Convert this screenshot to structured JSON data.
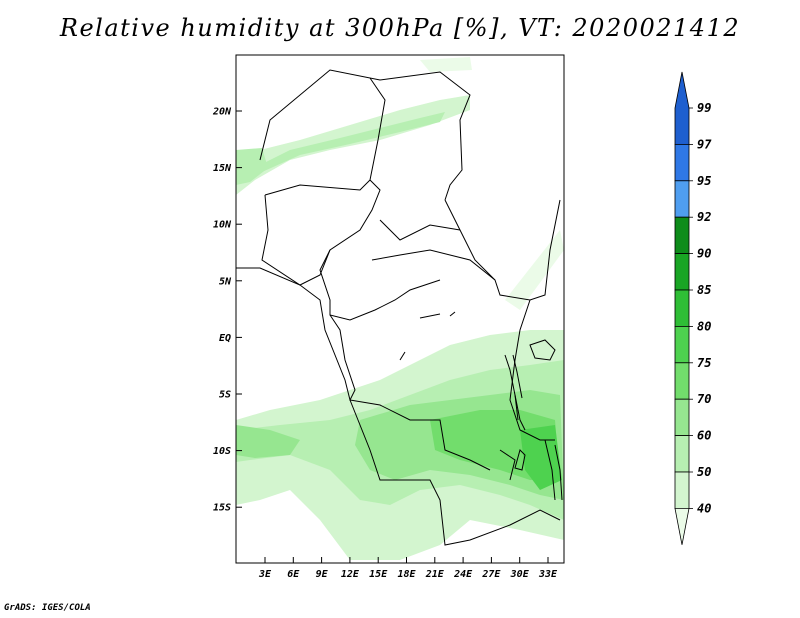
{
  "title": "Relative humidity at 300hPa [%], VT: 2020021412",
  "credit": "GrADS: IGES/COLA",
  "map": {
    "lat_ticks": [
      "20N",
      "15N",
      "10N",
      "5N",
      "EQ",
      "5S",
      "10S",
      "15S"
    ],
    "lon_ticks": [
      "3E",
      "6E",
      "9E",
      "12E",
      "15E",
      "18E",
      "21E",
      "24E",
      "27E",
      "30E",
      "33E"
    ]
  },
  "colorbar": {
    "levels": [
      "99",
      "97",
      "95",
      "92",
      "90",
      "85",
      "80",
      "75",
      "70",
      "60",
      "50",
      "40"
    ],
    "colors": [
      "#1e5fcf",
      "#2f78e6",
      "#4f9ef0",
      "#0e8c1a",
      "#19a524",
      "#2fbe36",
      "#4ed24f",
      "#72dd6c",
      "#96e690",
      "#b7efb2",
      "#d3f5cf",
      "#ebfbe8"
    ]
  }
}
